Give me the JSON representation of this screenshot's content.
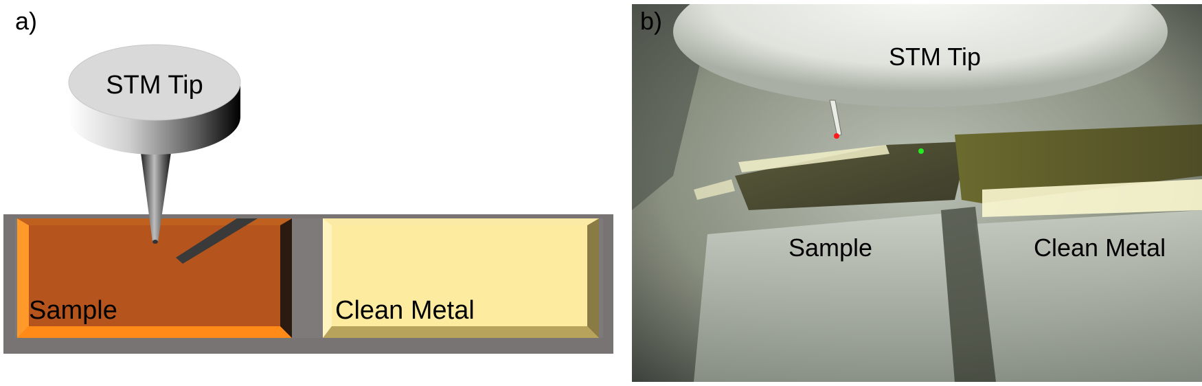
{
  "panel_a": {
    "label": "a)",
    "tip_label": "STM Tip",
    "sample_label": "Sample",
    "metal_label": "Clean Metal"
  },
  "panel_b": {
    "label": "b)",
    "tip_label": "STM Tip",
    "sample_label": "Sample",
    "metal_label": "Clean Metal"
  },
  "colors": {
    "sample": "#b5541c",
    "sample_highlight": "#ff8a18",
    "clean_metal": "#fdeba0",
    "clean_metal_shadow": "#9c8a4a",
    "stage": "#777473",
    "tip_marker": "#ff1a1a",
    "metal_marker": "#22ee22"
  }
}
